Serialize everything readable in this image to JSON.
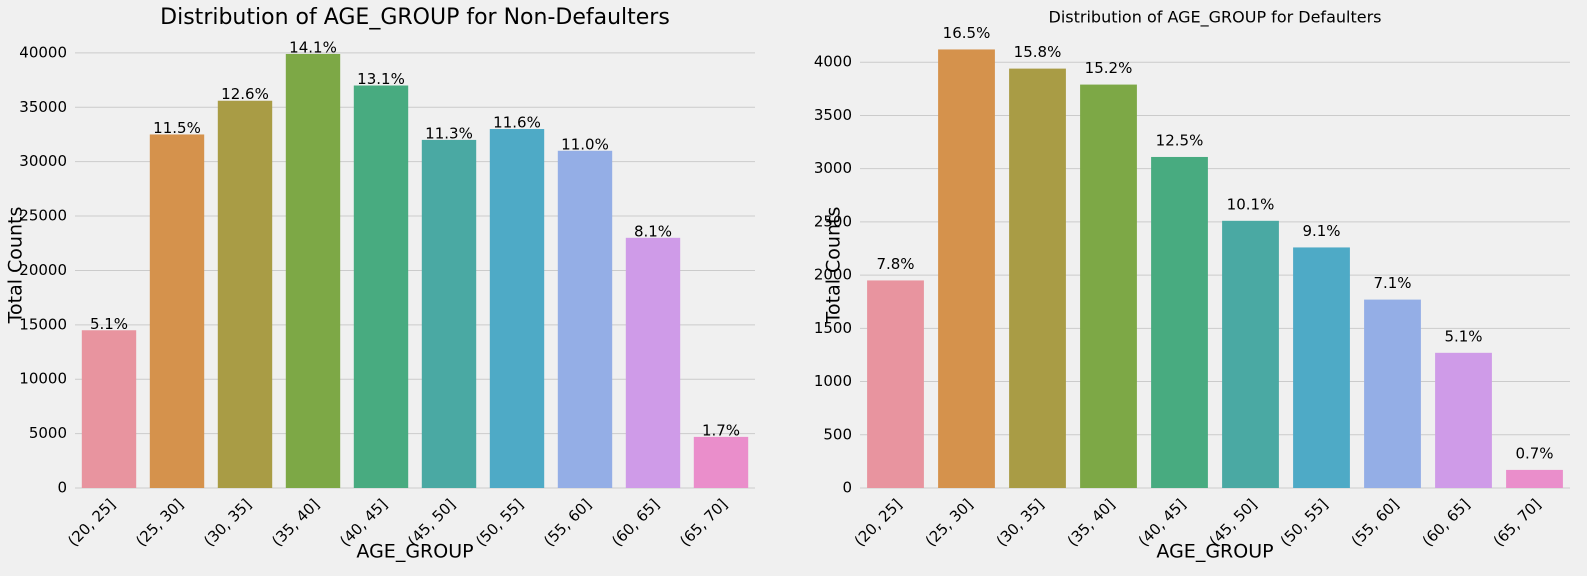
{
  "chart_data": [
    {
      "type": "bar",
      "title": "Distribution of AGE_GROUP for Non-Defaulters",
      "xlabel": "AGE_GROUP",
      "ylabel": "Total Counts",
      "categories": [
        "(20, 25]",
        "(25, 30]",
        "(30, 35]",
        "(35, 40]",
        "(40, 45]",
        "(45, 50]",
        "(50, 55]",
        "(55, 60]",
        "(60, 65]",
        "(65, 70]"
      ],
      "values": [
        14500,
        32500,
        35600,
        39900,
        37000,
        32000,
        33000,
        31000,
        23000,
        4700
      ],
      "percent_labels": [
        "5.1%",
        "11.5%",
        "12.6%",
        "14.1%",
        "13.1%",
        "11.3%",
        "11.6%",
        "11.0%",
        "8.1%",
        "1.7%"
      ],
      "colors": [
        "#e8949f",
        "#d5924c",
        "#a99c45",
        "#7da846",
        "#48ab80",
        "#4aa9a3",
        "#4eaac6",
        "#94aee6",
        "#cf9be8",
        "#ea8ecb"
      ],
      "ylim": [
        0,
        41000
      ],
      "yticks": [
        0,
        5000,
        10000,
        15000,
        20000,
        25000,
        30000,
        35000,
        40000
      ],
      "grid": true
    },
    {
      "type": "bar",
      "title": "Distribution of AGE_GROUP for Defaulters",
      "xlabel": "AGE_GROUP",
      "ylabel": "Total Counts",
      "categories": [
        "(20, 25]",
        "(25, 30]",
        "(30, 35]",
        "(35, 40]",
        "(40, 45]",
        "(45, 50]",
        "(50, 55]",
        "(55, 60]",
        "(60, 65]",
        "(65, 70]"
      ],
      "values": [
        1950,
        4120,
        3940,
        3790,
        3110,
        2510,
        2260,
        1770,
        1270,
        170
      ],
      "percent_labels": [
        "7.8%",
        "16.5%",
        "15.8%",
        "15.2%",
        "12.5%",
        "10.1%",
        "9.1%",
        "7.1%",
        "5.1%",
        "0.7%"
      ],
      "colors": [
        "#e8949f",
        "#d5924c",
        "#a99c45",
        "#7da846",
        "#48ab80",
        "#4aa9a3",
        "#4eaac6",
        "#94aee6",
        "#cf9be8",
        "#ea8ecb"
      ],
      "ylim": [
        0,
        4190
      ],
      "yticks": [
        0,
        500,
        1000,
        1500,
        2000,
        2500,
        3000,
        3500,
        4000
      ],
      "grid": true
    }
  ]
}
